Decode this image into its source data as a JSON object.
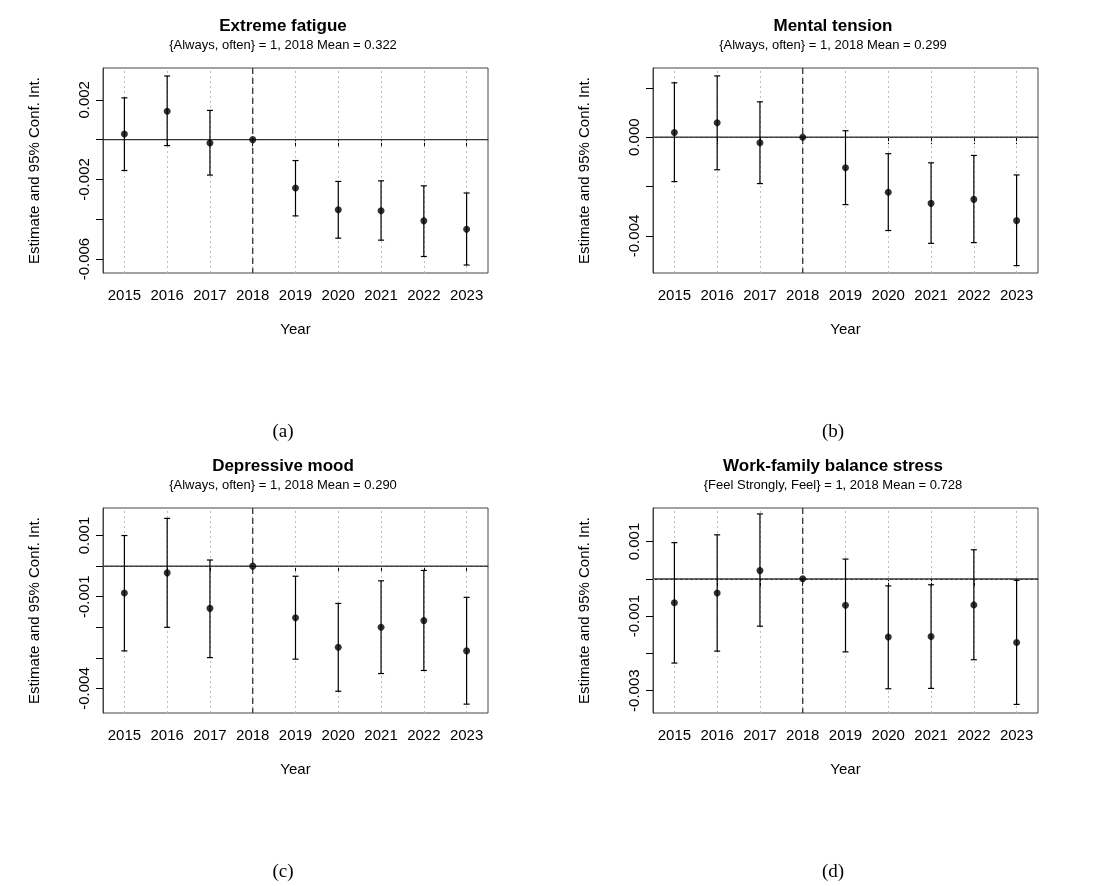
{
  "chart_data": [
    {
      "type": "scatter",
      "title": "Extreme fatigue",
      "subtitle": "{Always, often} = 1, 2018 Mean = 0.322",
      "xlabel": "Year",
      "ylabel": "Estimate and 95% Conf. Int.",
      "annotations": [
        "(a)"
      ],
      "categories": [
        "2015",
        "2016",
        "2017",
        "2018",
        "2019",
        "2020",
        "2021",
        "2022",
        "2023"
      ],
      "color": "#000000",
      "marker": "circle",
      "grid": true,
      "values": [
        0.00028,
        0.00143,
        -0.00017,
        0,
        -0.00243,
        -0.00352,
        -0.00357,
        -0.00408,
        -0.0045
      ],
      "errors": [
        [
          -0.00155,
          0.0021
        ],
        [
          -0.0003,
          0.0032
        ],
        [
          -0.00178,
          0.00147
        ],
        null,
        [
          -0.00383,
          -0.00105
        ],
        [
          -0.00495,
          -0.0021
        ],
        [
          -0.00505,
          -0.00207
        ],
        [
          -0.00587,
          -0.00232
        ],
        [
          -0.0063,
          -0.00268
        ]
      ],
      "ylim": [
        -0.0067,
        0.0036
      ],
      "yticks": [
        -0.006,
        {
          "value": -0.004,
          "label": null
        },
        -0.002,
        {
          "value": 0,
          "label": null
        },
        0.002
      ],
      "ref_lines": [
        {
          "axis": "y",
          "value": 0,
          "line_style": "solid",
          "color": "#333333"
        },
        {
          "axis": "x",
          "value": "2018",
          "line_style": "dashed",
          "color": "#333333"
        }
      ]
    },
    {
      "type": "scatter",
      "title": "Mental tension",
      "subtitle": "{Always, often} = 1, 2018 Mean = 0.299",
      "xlabel": "Year",
      "ylabel": "Estimate and 95% Conf. Int.",
      "annotations": [
        "(b)"
      ],
      "categories": [
        "2015",
        "2016",
        "2017",
        "2018",
        "2019",
        "2020",
        "2021",
        "2022",
        "2023"
      ],
      "color": "#000000",
      "marker": "circle",
      "grid": true,
      "values": [
        0.00019,
        0.00058,
        -0.00023,
        0,
        -0.00124,
        -0.00223,
        -0.00268,
        -0.00252,
        -0.00338
      ],
      "errors": [
        [
          -0.0018,
          0.0022
        ],
        [
          -0.00132,
          0.00248
        ],
        [
          -0.00188,
          0.00143
        ],
        null,
        [
          -0.00273,
          0.00026
        ],
        [
          -0.00378,
          -0.00067
        ],
        [
          -0.0043,
          -0.00104
        ],
        [
          -0.00427,
          -0.00074
        ],
        [
          -0.0052,
          -0.00153
        ]
      ],
      "ylim": [
        -0.0055,
        0.0028
      ],
      "yticks": [
        {
          "value": -0.004,
          "label": "-0.004"
        },
        {
          "value": -0.002,
          "label": null
        },
        {
          "value": 0,
          "label": "0.000"
        },
        {
          "value": 0.002,
          "label": null
        }
      ],
      "ref_lines": [
        {
          "axis": "y",
          "value": 0,
          "line_style": "solid",
          "color": "#333333"
        },
        {
          "axis": "x",
          "value": "2018",
          "line_style": "dashed",
          "color": "#333333"
        }
      ]
    },
    {
      "type": "scatter",
      "title": "Depressive mood",
      "subtitle": "{Always, often} = 1, 2018 Mean = 0.290",
      "xlabel": "Year",
      "ylabel": "Estimate and 95% Conf. Int.",
      "annotations": [
        "(c)"
      ],
      "categories": [
        "2015",
        "2016",
        "2017",
        "2018",
        "2019",
        "2020",
        "2021",
        "2022",
        "2023"
      ],
      "color": "#000000",
      "marker": "circle",
      "grid": true,
      "values": [
        -0.00088,
        -0.00022,
        -0.00138,
        0,
        -0.00169,
        -0.00265,
        -0.002,
        -0.00178,
        -0.00277
      ],
      "errors": [
        [
          -0.00277,
          0.001
        ],
        [
          -0.002,
          0.00156
        ],
        [
          -0.00299,
          0.0002
        ],
        null,
        [
          -0.00304,
          -0.00033
        ],
        [
          -0.00409,
          -0.00122
        ],
        [
          -0.00351,
          -0.00048
        ],
        [
          -0.00341,
          -0.00014
        ],
        [
          -0.00451,
          -0.00102
        ]
      ],
      "ylim": [
        -0.0048,
        0.0019
      ],
      "yticks": [
        -0.004,
        {
          "value": -0.003,
          "label": null
        },
        {
          "value": -0.002,
          "label": null
        },
        -0.001,
        {
          "value": 0,
          "label": null
        },
        0.001
      ],
      "ref_lines": [
        {
          "axis": "y",
          "value": 0,
          "line_style": "solid",
          "color": "#333333"
        },
        {
          "axis": "x",
          "value": "2018",
          "line_style": "dashed",
          "color": "#333333"
        }
      ]
    },
    {
      "type": "scatter",
      "title": "Work-family balance stress",
      "subtitle": "{Feel Strongly, Feel} = 1, 2018 Mean = 0.728",
      "xlabel": "Year",
      "ylabel": "Estimate and 95% Conf. Int.",
      "annotations": [
        "(d)"
      ],
      "categories": [
        "2015",
        "2016",
        "2017",
        "2018",
        "2019",
        "2020",
        "2021",
        "2022",
        "2023"
      ],
      "color": "#000000",
      "marker": "circle",
      "grid": true,
      "values": [
        -0.00064,
        -0.00038,
        0.00022,
        0,
        -0.00071,
        -0.00156,
        -0.00155,
        -0.0007,
        -0.00171
      ],
      "errors": [
        [
          -0.00226,
          0.00097
        ],
        [
          -0.00194,
          0.00118
        ],
        [
          -0.00127,
          0.00174
        ],
        null,
        [
          -0.00196,
          0.00053
        ],
        [
          -0.00295,
          -0.00019
        ],
        [
          -0.00294,
          -0.00016
        ],
        [
          -0.00217,
          0.00078
        ],
        [
          -0.00337,
          -4e-05
        ]
      ],
      "ylim": [
        -0.0036,
        0.0019
      ],
      "yticks": [
        -0.003,
        {
          "value": -0.002,
          "label": null
        },
        -0.001,
        {
          "value": 0,
          "label": null
        },
        0.001
      ],
      "ref_lines": [
        {
          "axis": "y",
          "value": 0,
          "line_style": "solid",
          "color": "#333333"
        },
        {
          "axis": "x",
          "value": "2018",
          "line_style": "dashed",
          "color": "#333333"
        }
      ]
    }
  ]
}
